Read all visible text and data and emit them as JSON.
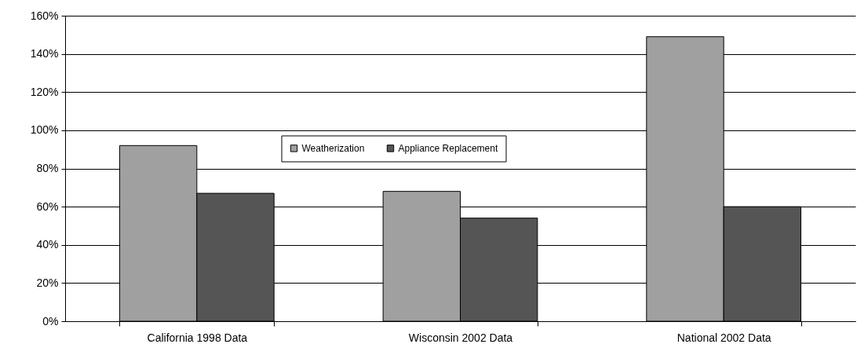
{
  "chart_data": {
    "type": "bar",
    "categories": [
      "California 1998 Data",
      "Wisconsin 2002 Data",
      "National 2002 Data"
    ],
    "series": [
      {
        "name": "Weatherization",
        "color": "#a0a0a0",
        "values": [
          92,
          68,
          149
        ]
      },
      {
        "name": "Appliance Replacement",
        "color": "#555555",
        "values": [
          67,
          54,
          60
        ]
      }
    ],
    "ylim": [
      0,
      160
    ],
    "yticks": [
      {
        "value": 0,
        "label": "0%"
      },
      {
        "value": 20,
        "label": "20%"
      },
      {
        "value": 40,
        "label": "40%"
      },
      {
        "value": 60,
        "label": "60%"
      },
      {
        "value": 80,
        "label": "80%"
      },
      {
        "value": 100,
        "label": "100%"
      },
      {
        "value": 120,
        "label": "120%"
      },
      {
        "value": 140,
        "label": "140%"
      },
      {
        "value": 160,
        "label": "160%"
      }
    ],
    "grid": "y",
    "legend": "center"
  }
}
